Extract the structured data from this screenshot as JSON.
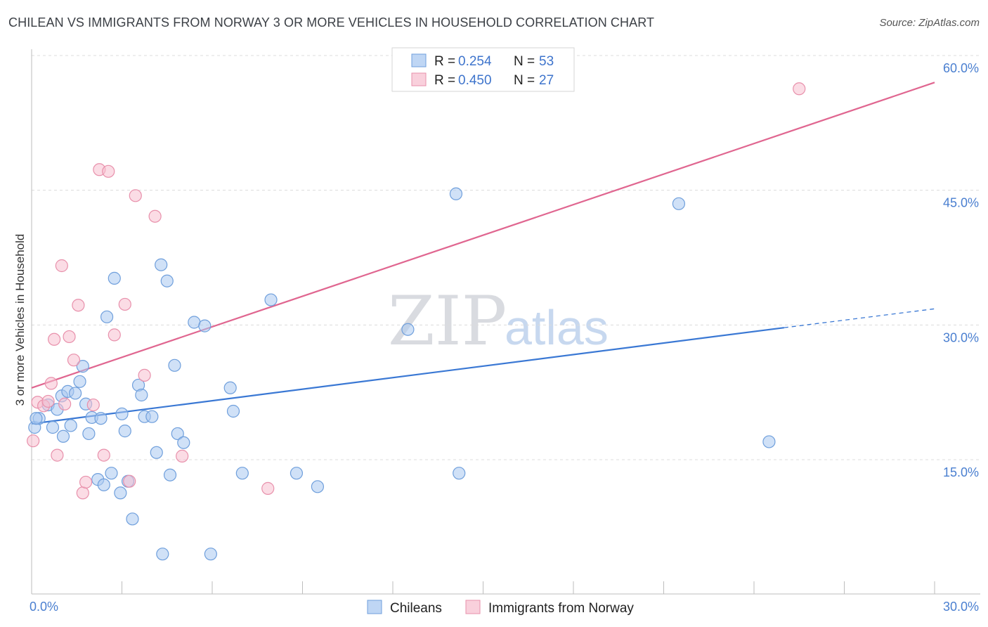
{
  "header": {
    "title": "CHILEAN VS IMMIGRANTS FROM NORWAY 3 OR MORE VEHICLES IN HOUSEHOLD CORRELATION CHART",
    "source": "Source: ZipAtlas.com"
  },
  "watermark": {
    "part1": "ZIP",
    "part2": "atlas"
  },
  "legend_top": [
    {
      "r_label": "R =",
      "r_value": "0.254",
      "n_label": "N =",
      "n_value": "53",
      "color": "#aac8f0",
      "stroke": "#6f9fdc"
    },
    {
      "r_label": "R =",
      "r_value": "0.450",
      "n_label": "N =",
      "n_value": "27",
      "color": "#f7c0d0",
      "stroke": "#e890ab"
    }
  ],
  "legend_bottom": [
    {
      "label": "Chileans",
      "color": "#aac8f0",
      "stroke": "#6f9fdc"
    },
    {
      "label": "Immigrants from Norway",
      "color": "#f7c0d0",
      "stroke": "#e890ab"
    }
  ],
  "chart_data": {
    "type": "scatter",
    "title": "CHILEAN VS IMMIGRANTS FROM NORWAY 3 OR MORE VEHICLES IN HOUSEHOLD CORRELATION CHART",
    "xlabel": "",
    "ylabel": "3 or more Vehicles in Household",
    "xlim": [
      0,
      30
    ],
    "ylim": [
      0,
      61
    ],
    "x_tick_labels": [
      "0.0%",
      "30.0%"
    ],
    "y_ticks": [
      15,
      30,
      45,
      60
    ],
    "y_tick_labels": [
      "15.0%",
      "30.0%",
      "45.0%",
      "60.0%"
    ],
    "grid": true,
    "series": [
      {
        "name": "Chileans",
        "color": "#aac8f0",
        "stroke": "#6f9fdc",
        "points": [
          [
            0.1,
            18.6
          ],
          [
            0.25,
            19.6
          ],
          [
            0.55,
            21.1
          ],
          [
            0.7,
            18.6
          ],
          [
            0.85,
            20.6
          ],
          [
            1.0,
            22.1
          ],
          [
            1.05,
            17.6
          ],
          [
            1.2,
            22.6
          ],
          [
            1.3,
            18.8
          ],
          [
            1.45,
            22.4
          ],
          [
            1.6,
            23.7
          ],
          [
            1.7,
            25.4
          ],
          [
            1.8,
            21.2
          ],
          [
            1.9,
            17.9
          ],
          [
            2.0,
            19.7
          ],
          [
            2.2,
            12.8
          ],
          [
            2.3,
            19.6
          ],
          [
            2.4,
            12.2
          ],
          [
            2.5,
            30.9
          ],
          [
            2.65,
            13.5
          ],
          [
            2.75,
            35.2
          ],
          [
            2.95,
            11.3
          ],
          [
            3.0,
            20.1
          ],
          [
            3.1,
            18.2
          ],
          [
            3.2,
            12.6
          ],
          [
            3.35,
            8.4
          ],
          [
            3.55,
            23.3
          ],
          [
            3.65,
            22.2
          ],
          [
            3.75,
            19.8
          ],
          [
            4.0,
            19.8
          ],
          [
            4.15,
            15.8
          ],
          [
            4.3,
            36.7
          ],
          [
            4.5,
            34.9
          ],
          [
            4.6,
            13.3
          ],
          [
            4.75,
            25.5
          ],
          [
            4.85,
            17.9
          ],
          [
            5.05,
            16.9
          ],
          [
            5.4,
            30.3
          ],
          [
            5.75,
            29.9
          ],
          [
            6.6,
            23.0
          ],
          [
            6.7,
            20.4
          ],
          [
            7.0,
            13.5
          ],
          [
            7.95,
            32.8
          ],
          [
            8.8,
            13.5
          ],
          [
            9.5,
            12.0
          ],
          [
            12.5,
            29.5
          ],
          [
            14.1,
            44.6
          ],
          [
            14.2,
            13.5
          ],
          [
            4.35,
            4.5
          ],
          [
            5.95,
            4.5
          ],
          [
            21.5,
            43.5
          ],
          [
            24.5,
            17.0
          ],
          [
            0.15,
            19.6
          ]
        ]
      },
      {
        "name": "Immigrants from Norway",
        "color": "#f7c0d0",
        "stroke": "#e890ab",
        "points": [
          [
            0.05,
            17.1
          ],
          [
            0.2,
            21.4
          ],
          [
            0.4,
            21.0
          ],
          [
            0.55,
            21.5
          ],
          [
            0.65,
            23.5
          ],
          [
            0.75,
            28.4
          ],
          [
            0.85,
            15.5
          ],
          [
            1.0,
            36.6
          ],
          [
            1.1,
            21.2
          ],
          [
            1.25,
            28.7
          ],
          [
            1.4,
            26.1
          ],
          [
            1.55,
            32.2
          ],
          [
            1.7,
            11.3
          ],
          [
            1.8,
            12.5
          ],
          [
            2.05,
            21.1
          ],
          [
            2.25,
            47.3
          ],
          [
            2.4,
            15.5
          ],
          [
            2.55,
            47.1
          ],
          [
            2.75,
            28.9
          ],
          [
            3.1,
            32.3
          ],
          [
            3.25,
            12.6
          ],
          [
            3.45,
            44.4
          ],
          [
            3.75,
            24.4
          ],
          [
            4.1,
            42.1
          ],
          [
            5.0,
            15.4
          ],
          [
            7.85,
            11.8
          ],
          [
            25.5,
            56.3
          ]
        ]
      }
    ],
    "trendlines": [
      {
        "series": "Chileans",
        "x": [
          0,
          25
        ],
        "y": [
          19.0,
          29.7
        ],
        "dashed_extension_to": [
          30,
          31.8
        ],
        "color": "#3a78d4"
      },
      {
        "series": "Immigrants from Norway",
        "x": [
          0,
          30
        ],
        "y": [
          23.0,
          57.0
        ],
        "color": "#e06690"
      }
    ]
  }
}
